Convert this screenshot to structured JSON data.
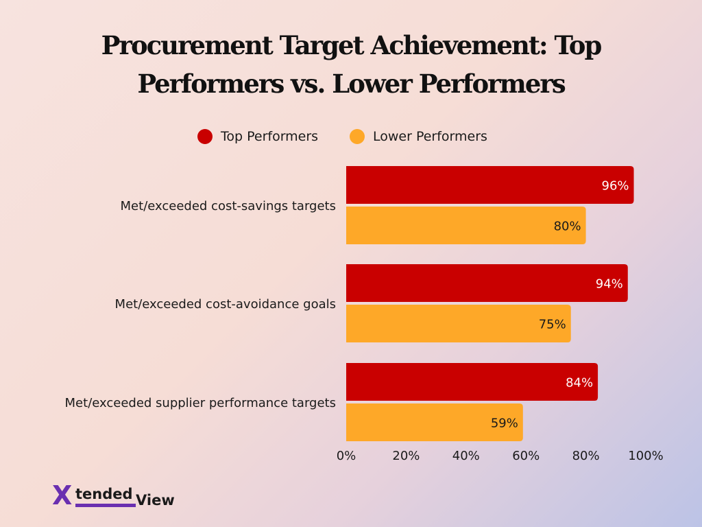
{
  "chart_data": {
    "type": "bar",
    "orientation": "horizontal",
    "title": "Procurement Target Achievement: Top Performers vs. Lower Performers",
    "categories": [
      "Met/exceeded cost-savings targets",
      "Met/exceeded cost-avoidance goals",
      "Met/exceeded supplier performance targets"
    ],
    "series": [
      {
        "name": "Top Performers",
        "color": "#c90000",
        "values": [
          96,
          94,
          84
        ],
        "labels": [
          "96%",
          "94%",
          "84%"
        ]
      },
      {
        "name": "Lower Performers",
        "color": "#fea828",
        "values": [
          80,
          75,
          59
        ],
        "labels": [
          "80%",
          "75%",
          "59%"
        ]
      }
    ],
    "xlim": [
      0,
      100
    ],
    "xticks": [
      "0%",
      "20%",
      "40%",
      "60%",
      "80%",
      "100%"
    ],
    "legend_position": "top",
    "grid": false
  },
  "logo": {
    "mark": "X",
    "part1": "tended",
    "part2": "View"
  }
}
